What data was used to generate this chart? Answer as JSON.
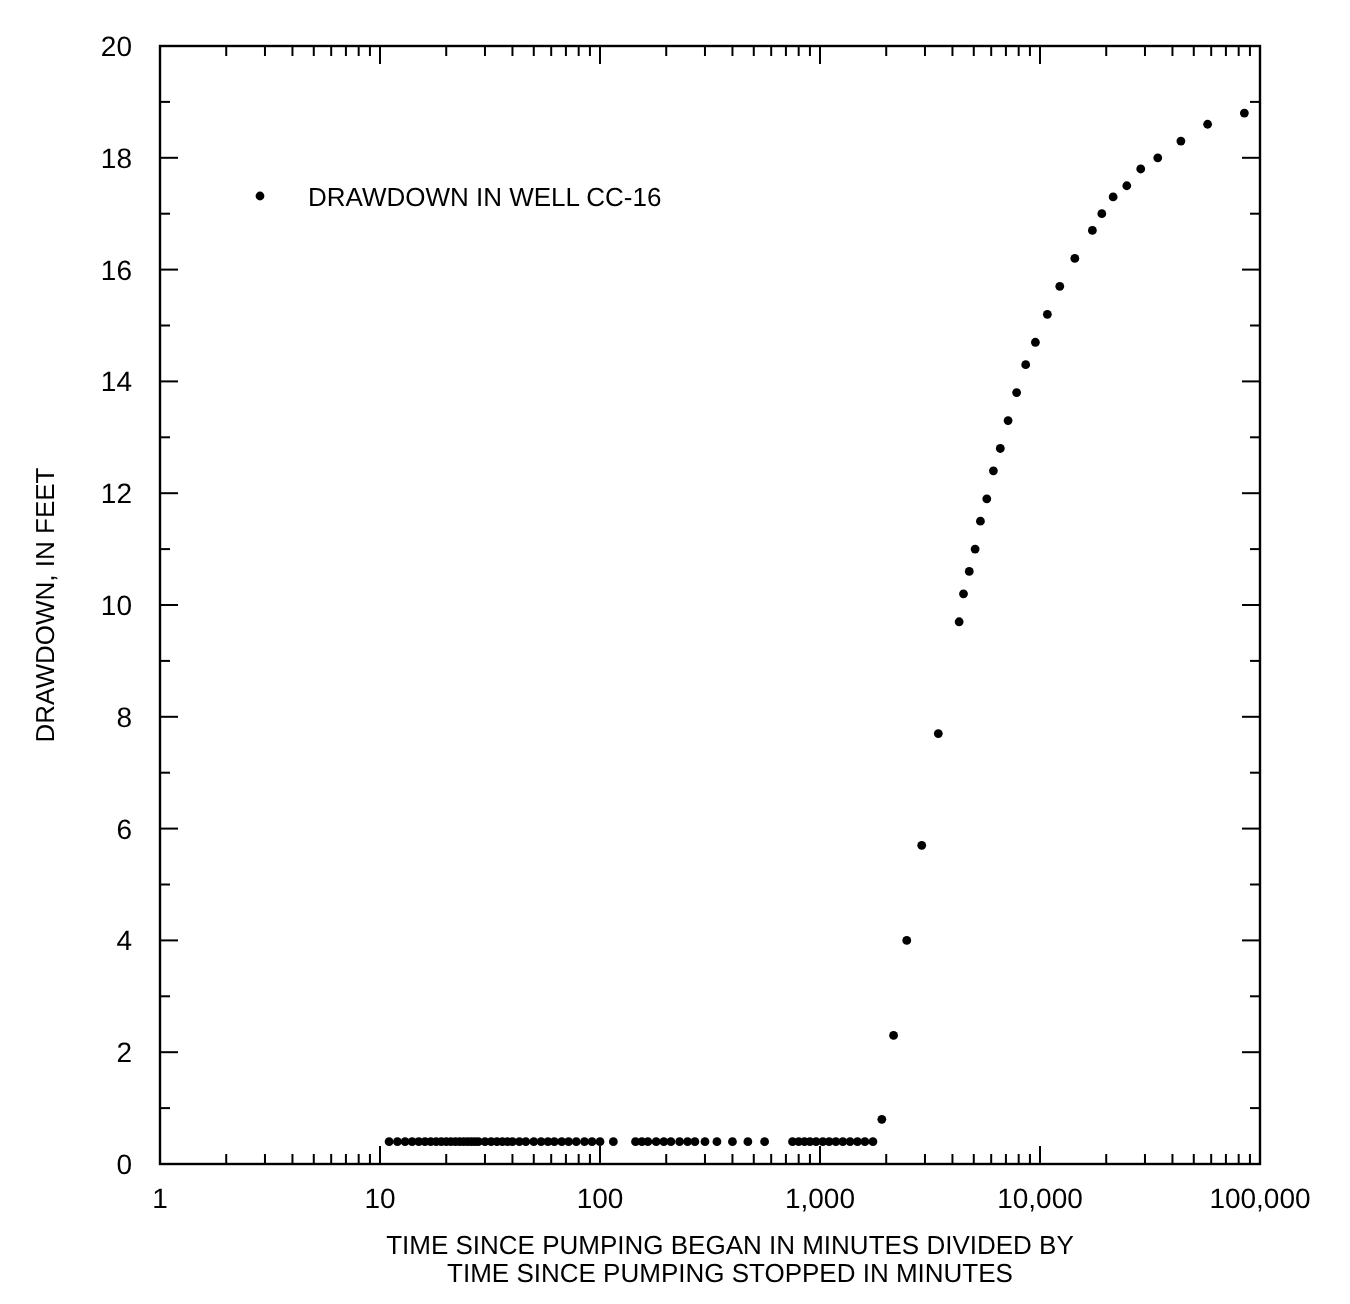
{
  "chart_data": {
    "type": "scatter",
    "xlabel": "TIME SINCE PUMPING BEGAN IN MINUTES DIVIDED BY\nTIME SINCE PUMPING STOPPED IN MINUTES",
    "ylabel": "DRAWDOWN, IN FEET",
    "log": "x",
    "marker": "circle",
    "legend": "top left",
    "grid": false,
    "xlim": [
      1,
      100000
    ],
    "ylim": [
      0,
      20
    ],
    "xticks": [
      {
        "value": 1,
        "label": "1"
      },
      {
        "value": 2,
        "label": null
      },
      {
        "value": 3,
        "label": null
      },
      {
        "value": 4,
        "label": null
      },
      {
        "value": 5,
        "label": null
      },
      {
        "value": 6,
        "label": null
      },
      {
        "value": 7,
        "label": null
      },
      {
        "value": 8,
        "label": null
      },
      {
        "value": 9,
        "label": null
      },
      {
        "value": 10,
        "label": "10"
      },
      {
        "value": 20,
        "label": null
      },
      {
        "value": 30,
        "label": null
      },
      {
        "value": 40,
        "label": null
      },
      {
        "value": 50,
        "label": null
      },
      {
        "value": 60,
        "label": null
      },
      {
        "value": 70,
        "label": null
      },
      {
        "value": 80,
        "label": null
      },
      {
        "value": 90,
        "label": null
      },
      {
        "value": 100,
        "label": "100"
      },
      {
        "value": 200,
        "label": null
      },
      {
        "value": 300,
        "label": null
      },
      {
        "value": 400,
        "label": null
      },
      {
        "value": 500,
        "label": null
      },
      {
        "value": 600,
        "label": null
      },
      {
        "value": 700,
        "label": null
      },
      {
        "value": 800,
        "label": null
      },
      {
        "value": 900,
        "label": null
      },
      {
        "value": 1000,
        "label": "1,000"
      },
      {
        "value": 2000,
        "label": null
      },
      {
        "value": 3000,
        "label": null
      },
      {
        "value": 4000,
        "label": null
      },
      {
        "value": 5000,
        "label": null
      },
      {
        "value": 6000,
        "label": null
      },
      {
        "value": 7000,
        "label": null
      },
      {
        "value": 8000,
        "label": null
      },
      {
        "value": 9000,
        "label": null
      },
      {
        "value": 10000,
        "label": "10,000"
      },
      {
        "value": 20000,
        "label": null
      },
      {
        "value": 30000,
        "label": null
      },
      {
        "value": 40000,
        "label": null
      },
      {
        "value": 50000,
        "label": null
      },
      {
        "value": 60000,
        "label": null
      },
      {
        "value": 70000,
        "label": null
      },
      {
        "value": 80000,
        "label": null
      },
      {
        "value": 90000,
        "label": null
      },
      {
        "value": 100000,
        "label": "100,000"
      }
    ],
    "yticks": [
      0,
      {
        "value": 1,
        "label": null
      },
      2,
      {
        "value": 3,
        "label": null
      },
      4,
      {
        "value": 5,
        "label": null
      },
      6,
      {
        "value": 7,
        "label": null
      },
      8,
      {
        "value": 9,
        "label": null
      },
      10,
      {
        "value": 11,
        "label": null
      },
      12,
      {
        "value": 13,
        "label": null
      },
      14,
      {
        "value": 15,
        "label": null
      },
      16,
      {
        "value": 17,
        "label": null
      },
      18,
      {
        "value": 19,
        "label": null
      },
      20
    ],
    "series": [
      {
        "name": "DRAWDOWN IN WELL CC-16",
        "color": "#000000",
        "x": [
          11,
          12,
          13,
          14,
          15,
          16,
          17,
          18,
          19,
          20,
          21,
          22,
          23,
          24,
          25,
          26,
          27,
          28,
          30,
          32,
          34,
          36,
          38,
          40,
          43,
          46,
          50,
          54,
          58,
          62,
          67,
          72,
          78,
          85,
          92,
          100,
          115,
          145,
          155,
          165,
          180,
          195,
          210,
          230,
          250,
          270,
          300,
          340,
          400,
          470,
          560,
          750,
          800,
          850,
          900,
          960,
          1030,
          1100,
          1180,
          1270,
          1370,
          1480,
          1600,
          1740,
          1910,
          2160,
          2480,
          2900,
          3450,
          4290,
          4490,
          4770,
          5070,
          5360,
          5730,
          6140,
          6600,
          7160,
          7830,
          8610,
          9530,
          10800,
          12300,
          14400,
          17300,
          19100,
          21500,
          24800,
          28700,
          34300,
          43700,
          57800,
          84900
        ],
        "values": [
          0.4,
          0.4,
          0.4,
          0.4,
          0.4,
          0.4,
          0.4,
          0.4,
          0.4,
          0.4,
          0.4,
          0.4,
          0.4,
          0.4,
          0.4,
          0.4,
          0.4,
          0.4,
          0.4,
          0.4,
          0.4,
          0.4,
          0.4,
          0.4,
          0.4,
          0.4,
          0.4,
          0.4,
          0.4,
          0.4,
          0.4,
          0.4,
          0.4,
          0.4,
          0.4,
          0.4,
          0.4,
          0.4,
          0.4,
          0.4,
          0.4,
          0.4,
          0.4,
          0.4,
          0.4,
          0.4,
          0.4,
          0.4,
          0.4,
          0.4,
          0.4,
          0.4,
          0.4,
          0.4,
          0.4,
          0.4,
          0.4,
          0.4,
          0.4,
          0.4,
          0.4,
          0.4,
          0.4,
          0.4,
          0.8,
          2.3,
          4.0,
          5.7,
          7.7,
          9.7,
          10.2,
          10.6,
          11.0,
          11.5,
          11.9,
          12.4,
          12.8,
          13.3,
          13.8,
          14.3,
          14.7,
          15.2,
          15.7,
          16.2,
          16.7,
          17.0,
          17.3,
          17.5,
          17.8,
          18.0,
          18.3,
          18.6,
          18.8
        ]
      }
    ]
  }
}
